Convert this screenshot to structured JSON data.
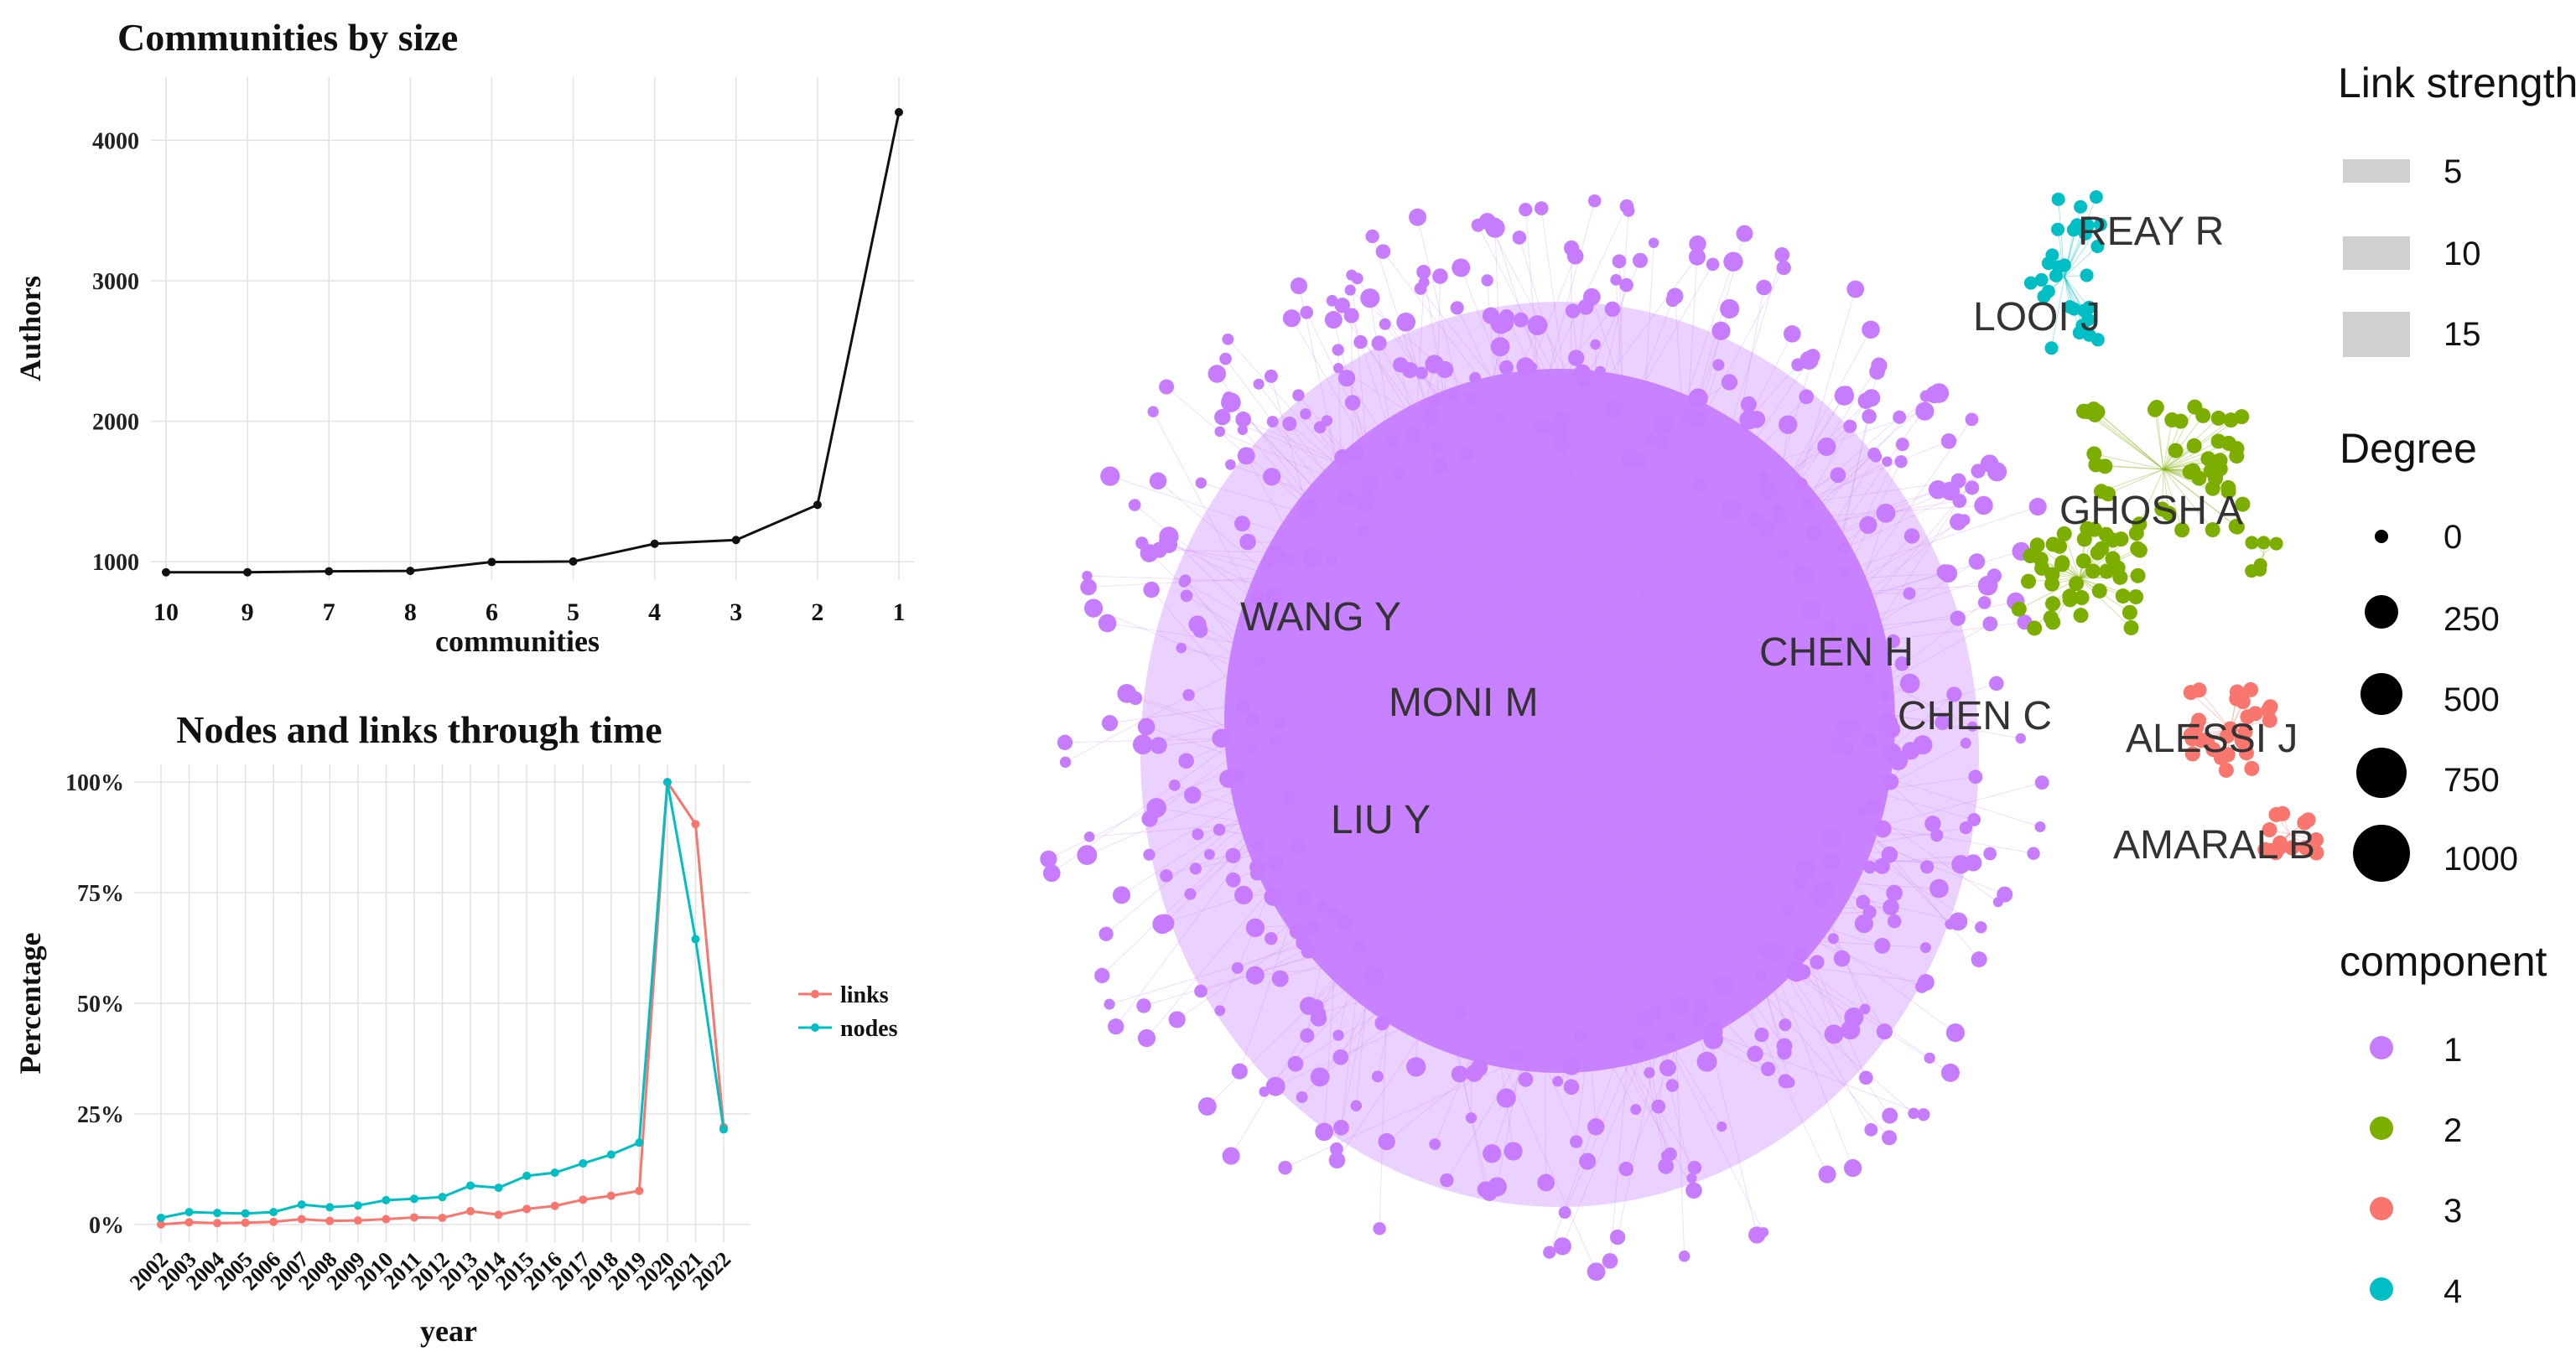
{
  "chart_data": [
    {
      "type": "line",
      "title": "Communities by size",
      "xlabel": "communities",
      "ylabel": "Authors",
      "categories": [
        "10",
        "9",
        "7",
        "8",
        "6",
        "5",
        "4",
        "3",
        "2",
        "1"
      ],
      "values": [
        925,
        925,
        932,
        935,
        998,
        1002,
        1128,
        1155,
        1405,
        4200
      ],
      "ylim": [
        870,
        4450
      ],
      "yticks": [
        1000,
        2000,
        3000,
        4000
      ],
      "ytick_labels": [
        "1000",
        "2000",
        "3000",
        "4000"
      ],
      "grid": true,
      "colors": {
        "line": "#111111",
        "point": "#111111"
      }
    },
    {
      "type": "line",
      "title": "Nodes and links through time",
      "xlabel": "year",
      "ylabel": "Percentage",
      "categories": [
        "2002",
        "2003",
        "2004",
        "2005",
        "2006",
        "2007",
        "2008",
        "2009",
        "2010",
        "2011",
        "2012",
        "2013",
        "2014",
        "2015",
        "2016",
        "2017",
        "2018",
        "2019",
        "2020",
        "2021",
        "2022"
      ],
      "series": [
        {
          "name": "links",
          "color": "#f8766d",
          "values": [
            0,
            0.5,
            0.3,
            0.4,
            0.6,
            1.2,
            0.8,
            0.9,
            1.2,
            1.6,
            1.5,
            3,
            2.2,
            3.5,
            4.2,
            5.6,
            6.5,
            7.6,
            100,
            90.5,
            22
          ]
        },
        {
          "name": "nodes",
          "color": "#00bfc4",
          "values": [
            1.5,
            2.8,
            2.6,
            2.5,
            2.8,
            4.5,
            3.9,
            4.3,
            5.5,
            5.8,
            6.2,
            8.8,
            8.3,
            11,
            11.7,
            13.8,
            15.8,
            18.5,
            100,
            64.5,
            21.5
          ]
        }
      ],
      "ylim": [
        -4,
        104
      ],
      "yticks": [
        0,
        25,
        50,
        75,
        100
      ],
      "ytick_labels": [
        "0%",
        "25%",
        "50%",
        "75%",
        "100%"
      ],
      "legend_position": "right",
      "grid": true
    },
    {
      "type": "scatter",
      "subtype": "network graph",
      "components": [
        {
          "id": "1",
          "color": "#c77cff"
        },
        {
          "id": "2",
          "color": "#7cae00"
        },
        {
          "id": "3",
          "color": "#f8766d"
        },
        {
          "id": "4",
          "color": "#00bfc4"
        }
      ],
      "node_labels": [
        "REAY R",
        "LOOI J",
        "GHOSH A",
        "WANG Y",
        "MONI M",
        "CHEN H",
        "CHEN C",
        "ALESSI J",
        "LIU Y",
        "AMARAL B"
      ],
      "legends": {
        "link_strength": {
          "title": "Link strength",
          "values": [
            "5",
            "10",
            "15"
          ]
        },
        "degree": {
          "title": "Degree",
          "values": [
            "0",
            "250",
            "500",
            "750",
            "1000"
          ]
        },
        "component": {
          "title": "component",
          "values": [
            "1",
            "2",
            "3",
            "4"
          ]
        }
      },
      "legend_position": "right"
    }
  ]
}
